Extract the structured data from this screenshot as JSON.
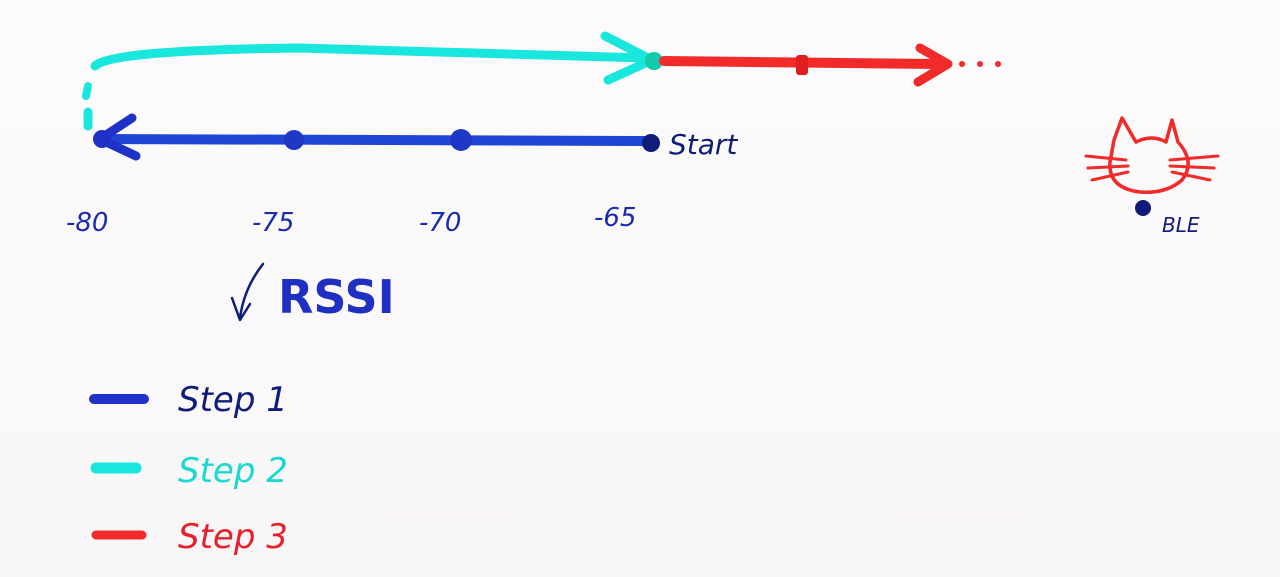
{
  "axis": {
    "ticks": [
      "-80",
      "-75",
      "-70",
      "-65"
    ],
    "start_label": "Start",
    "title": "RSSI"
  },
  "beacon": {
    "label": "BLE"
  },
  "legend": [
    {
      "label": "Step 1",
      "color": "#1f32c8"
    },
    {
      "label": "Step 2",
      "color": "#19e6dc"
    },
    {
      "label": "Step 3",
      "color": "#f22a2a"
    }
  ],
  "colors": {
    "step1": "#1f32c8",
    "step2": "#19e6dc",
    "step3": "#f22a2a",
    "ink": "#0f1c7a"
  }
}
